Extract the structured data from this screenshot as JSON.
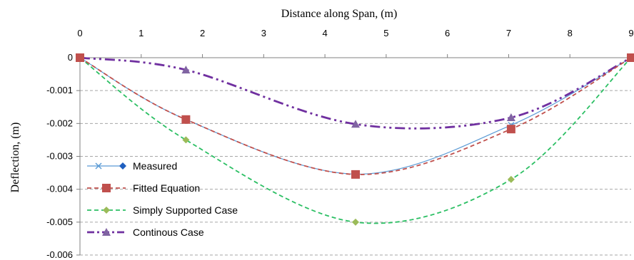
{
  "chart_data": {
    "type": "line",
    "title": "",
    "xlabel": "Distance along Span, (m)",
    "ylabel": "Deflection, (m)",
    "xlim": [
      0,
      9
    ],
    "ylim": [
      -0.006,
      0
    ],
    "x_ticks": [
      "0",
      "1",
      "2",
      "3",
      "4",
      "5",
      "6",
      "7",
      "8",
      "9"
    ],
    "y_ticks": [
      "0",
      "-0.001",
      "-0.002",
      "-0.003",
      "-0.004",
      "-0.005",
      "-0.006"
    ],
    "x_axis_position": "top",
    "grid": "horizontal dashed",
    "legend_position": "bottom-left",
    "series": [
      {
        "name": "Measured",
        "color": "#5b9bd5",
        "marker": "x",
        "line_style": "solid",
        "smooth": true,
        "x": [
          0,
          1.73,
          4.5,
          7.04,
          9
        ],
        "y": [
          0,
          -0.00188,
          -0.00354,
          -0.00205,
          0
        ]
      },
      {
        "name": "Fitted Equation",
        "color": "#c0504d",
        "marker": "square",
        "line_style": "dashed",
        "smooth": true,
        "x": [
          0,
          1.73,
          4.5,
          7.04,
          9
        ],
        "y": [
          0,
          -0.00188,
          -0.00355,
          -0.00217,
          0
        ]
      },
      {
        "name": "Simply Supported Case",
        "color": "#2bbf63",
        "marker_color": "#9bbb59",
        "marker": "diamond",
        "line_style": "dashed",
        "smooth": true,
        "x": [
          0,
          1.73,
          4.5,
          7.04,
          9
        ],
        "y": [
          0,
          -0.0025,
          -0.005,
          -0.0037,
          0
        ]
      },
      {
        "name": "Continous Case",
        "color": "#7030a0",
        "marker_color": "#8064a2",
        "marker": "triangle",
        "line_style": "dash-dot-dot",
        "smooth": true,
        "x": [
          0,
          1.73,
          4.5,
          7.04,
          9
        ],
        "y": [
          0,
          -0.00037,
          -0.00202,
          -0.00182,
          0
        ]
      }
    ]
  }
}
